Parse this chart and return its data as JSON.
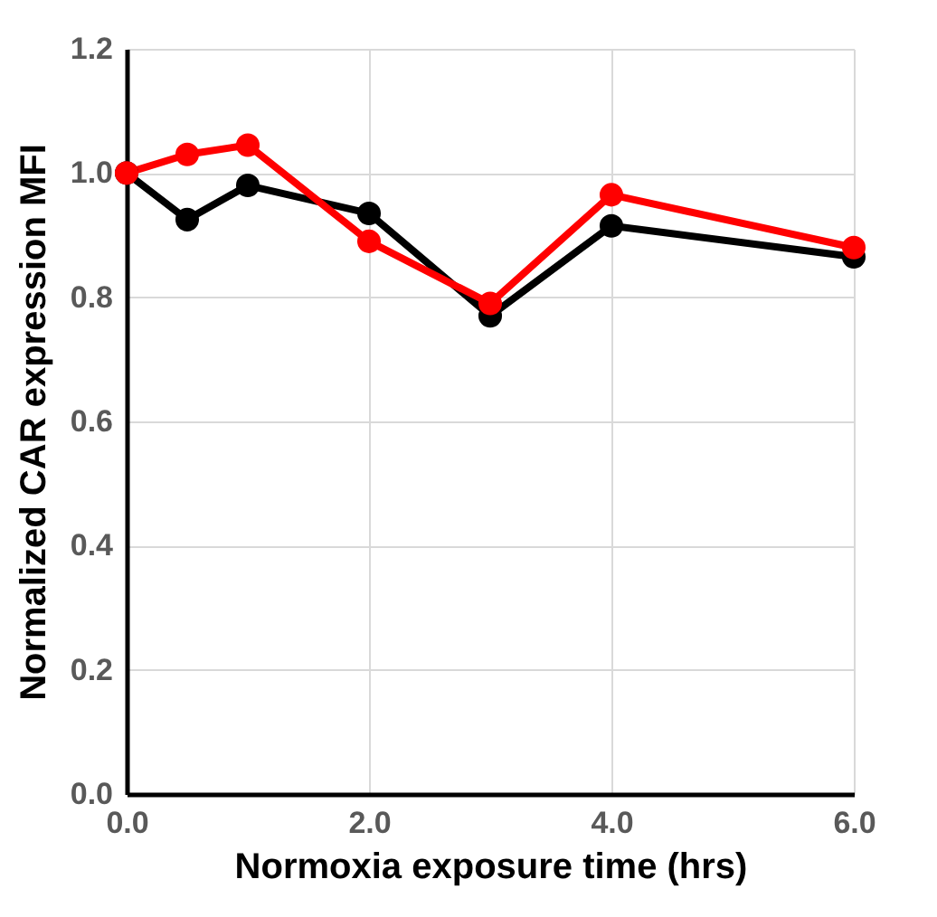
{
  "chart_data": {
    "type": "line",
    "xlabel": "Normoxia  exposure time (hrs)",
    "ylabel": "Normalized CAR expression MFI",
    "x": [
      0,
      0.5,
      1,
      2,
      3,
      4,
      6
    ],
    "series": [
      {
        "color": "#000000",
        "values": [
          1.0,
          0.925,
          0.98,
          0.935,
          0.77,
          0.915,
          0.865
        ]
      },
      {
        "color": "#ff0000",
        "values": [
          1.0,
          1.03,
          1.045,
          0.89,
          0.79,
          0.965,
          0.88
        ]
      }
    ],
    "xlim": [
      0,
      6
    ],
    "xticks": [
      {
        "value": 0,
        "label": "0.0"
      },
      {
        "value": 2,
        "label": "2.0"
      },
      {
        "value": 4,
        "label": "4.0"
      },
      {
        "value": 6,
        "label": "6.0"
      }
    ],
    "ylim": [
      0,
      1.2
    ],
    "yticks": [
      {
        "value": 0,
        "label": "0.0"
      },
      0.2,
      0.4,
      0.6,
      0.8,
      {
        "value": 1,
        "label": "1.0"
      },
      1.2
    ],
    "grid": true,
    "marker": "circle",
    "line_style": "solid"
  }
}
